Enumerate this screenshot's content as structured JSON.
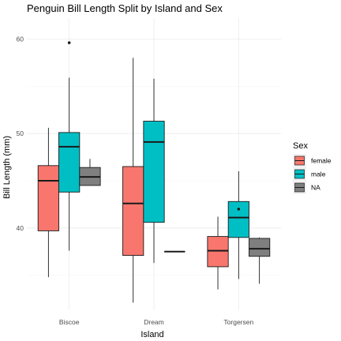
{
  "chart_data": {
    "type": "boxplot",
    "title": "Penguin Bill Length Split by Island and Sex",
    "xlabel": "Island",
    "ylabel": "Bill Length (mm)",
    "categories": [
      "Biscoe",
      "Dream",
      "Torgersen"
    ],
    "ylim": [
      31.3,
      62.2
    ],
    "yticks": [
      40,
      50,
      60
    ],
    "grid": true,
    "legend": {
      "title": "Sex",
      "position": "right",
      "entries": [
        "female",
        "male",
        "NA"
      ]
    },
    "series": [
      {
        "name": "female",
        "color": "#F8766D",
        "boxes": [
          {
            "category": "Biscoe",
            "min": 34.8,
            "q1": 39.7,
            "median": 45.0,
            "q3": 46.6,
            "max": 50.6,
            "outliers": []
          },
          {
            "category": "Dream",
            "min": 32.1,
            "q1": 37.1,
            "median": 42.6,
            "q3": 46.5,
            "max": 58.0,
            "outliers": []
          },
          {
            "category": "Torgersen",
            "min": 33.5,
            "q1": 35.9,
            "median": 37.6,
            "q3": 39.1,
            "max": 41.2,
            "outliers": []
          }
        ]
      },
      {
        "name": "male",
        "color": "#00BFC4",
        "boxes": [
          {
            "category": "Biscoe",
            "min": 37.6,
            "q1": 43.8,
            "median": 48.6,
            "q3": 50.1,
            "max": 55.9,
            "outliers": [
              59.6
            ]
          },
          {
            "category": "Dream",
            "min": 36.3,
            "q1": 40.6,
            "median": 49.1,
            "q3": 51.3,
            "max": 55.8,
            "outliers": []
          },
          {
            "category": "Torgersen",
            "min": 34.6,
            "q1": 39.0,
            "median": 41.1,
            "q3": 42.8,
            "max": 46.0,
            "outliers": [
              42.0
            ]
          }
        ]
      },
      {
        "name": "NA",
        "color": "#7F7F7F",
        "boxes": [
          {
            "category": "Biscoe",
            "min": 44.5,
            "q1": 44.5,
            "median": 45.4,
            "q3": 46.4,
            "max": 47.3,
            "outliers": []
          },
          {
            "category": "Dream",
            "min": 37.5,
            "q1": 37.5,
            "median": 37.5,
            "q3": 37.5,
            "max": 37.5,
            "outliers": []
          },
          {
            "category": "Torgersen",
            "min": 34.1,
            "q1": 37.0,
            "median": 37.8,
            "q3": 38.9,
            "max": 39.0,
            "outliers": []
          }
        ]
      }
    ]
  }
}
